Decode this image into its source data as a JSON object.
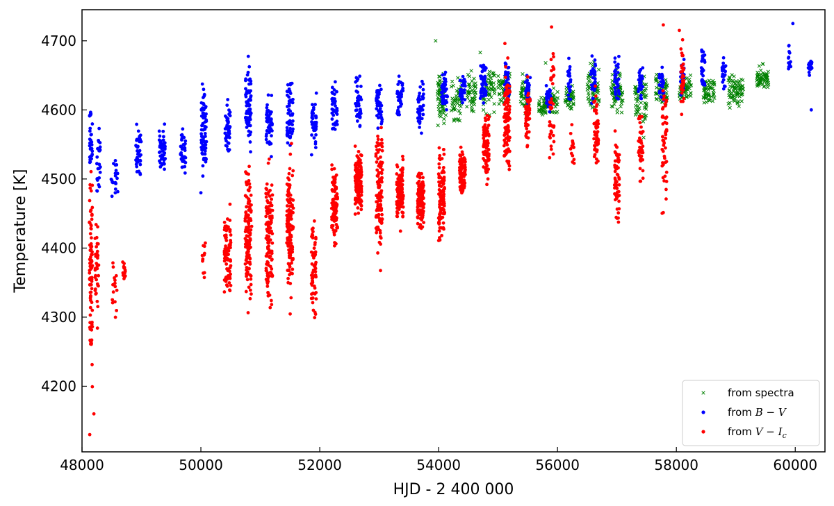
{
  "chart_data": {
    "type": "scatter",
    "title": "",
    "xlabel": "HJD - 2 400 000",
    "ylabel": "Temperature [K]",
    "xlim": [
      48000,
      60500
    ],
    "ylim": [
      4105,
      4745
    ],
    "grid": false,
    "legend_position": "lower-right",
    "x_ticks": [
      48000,
      50000,
      52000,
      54000,
      56000,
      58000,
      60000
    ],
    "y_ticks": [
      4200,
      4300,
      4400,
      4500,
      4600,
      4700
    ],
    "x_tick_labels": [
      "48000",
      "50000",
      "52000",
      "54000",
      "56000",
      "58000",
      "60000"
    ],
    "y_tick_labels": [
      "4200",
      "4300",
      "4400",
      "4500",
      "4600",
      "4700"
    ],
    "series": [
      {
        "name": "from spectra",
        "legend_parts": [
          "from spectra",
          "",
          ""
        ],
        "marker": "x",
        "color": "#008000",
        "clusters": [
          {
            "x": 54050,
            "xw": 150,
            "ymin": 4565,
            "ymax": 4665,
            "n": 70
          },
          {
            "x": 54300,
            "xw": 180,
            "ymin": 4570,
            "ymax": 4660,
            "n": 50
          },
          {
            "x": 54550,
            "xw": 150,
            "ymin": 4580,
            "ymax": 4665,
            "n": 45
          },
          {
            "x": 54850,
            "xw": 200,
            "ymin": 4585,
            "ymax": 4680,
            "n": 55
          },
          {
            "x": 55100,
            "xw": 200,
            "ymin": 4595,
            "ymax": 4665,
            "n": 50
          },
          {
            "x": 55450,
            "xw": 150,
            "ymin": 4590,
            "ymax": 4660,
            "n": 50
          },
          {
            "x": 55750,
            "xw": 150,
            "ymin": 4585,
            "ymax": 4625,
            "n": 45
          },
          {
            "x": 55950,
            "xw": 120,
            "ymin": 4590,
            "ymax": 4640,
            "n": 30
          },
          {
            "x": 56200,
            "xw": 150,
            "ymin": 4595,
            "ymax": 4640,
            "n": 45
          },
          {
            "x": 56600,
            "xw": 200,
            "ymin": 4580,
            "ymax": 4680,
            "n": 60
          },
          {
            "x": 57000,
            "xw": 200,
            "ymin": 4585,
            "ymax": 4665,
            "n": 65
          },
          {
            "x": 57400,
            "xw": 200,
            "ymin": 4565,
            "ymax": 4660,
            "n": 60
          },
          {
            "x": 57750,
            "xw": 200,
            "ymin": 4590,
            "ymax": 4660,
            "n": 60
          },
          {
            "x": 58150,
            "xw": 200,
            "ymin": 4600,
            "ymax": 4660,
            "n": 60
          },
          {
            "x": 58550,
            "xw": 200,
            "ymin": 4600,
            "ymax": 4655,
            "n": 55
          },
          {
            "x": 59000,
            "xw": 250,
            "ymin": 4595,
            "ymax": 4660,
            "n": 70
          },
          {
            "x": 59450,
            "xw": 200,
            "ymin": 4620,
            "ymax": 4670,
            "n": 60
          }
        ],
        "points": [
          [
            53950,
            4700
          ],
          [
            54700,
            4683
          ],
          [
            55800,
            4668
          ],
          [
            58900,
            4603
          ],
          [
            57450,
            4560
          ]
        ]
      },
      {
        "name": "from B - V",
        "legend_parts": [
          "from ",
          "B",
          " − V"
        ],
        "marker": "o",
        "color": "#0000ff",
        "clusters": [
          {
            "x": 48150,
            "xw": 50,
            "ymin": 4490,
            "ymax": 4630,
            "n": 30
          },
          {
            "x": 48280,
            "xw": 60,
            "ymin": 4460,
            "ymax": 4590,
            "n": 25
          },
          {
            "x": 48550,
            "xw": 120,
            "ymin": 4465,
            "ymax": 4535,
            "n": 20
          },
          {
            "x": 48950,
            "xw": 90,
            "ymin": 4485,
            "ymax": 4595,
            "n": 40
          },
          {
            "x": 49350,
            "xw": 100,
            "ymin": 4495,
            "ymax": 4600,
            "n": 45
          },
          {
            "x": 49700,
            "xw": 90,
            "ymin": 4495,
            "ymax": 4590,
            "n": 40
          },
          {
            "x": 50050,
            "xw": 90,
            "ymin": 4470,
            "ymax": 4665,
            "n": 75
          },
          {
            "x": 50450,
            "xw": 90,
            "ymin": 4515,
            "ymax": 4630,
            "n": 45
          },
          {
            "x": 50800,
            "xw": 100,
            "ymin": 4520,
            "ymax": 4695,
            "n": 65
          },
          {
            "x": 51150,
            "xw": 100,
            "ymin": 4525,
            "ymax": 4635,
            "n": 50
          },
          {
            "x": 51500,
            "xw": 100,
            "ymin": 4520,
            "ymax": 4675,
            "n": 55
          },
          {
            "x": 51900,
            "xw": 90,
            "ymin": 4520,
            "ymax": 4635,
            "n": 45
          },
          {
            "x": 52250,
            "xw": 90,
            "ymin": 4560,
            "ymax": 4650,
            "n": 40
          },
          {
            "x": 52650,
            "xw": 100,
            "ymin": 4555,
            "ymax": 4660,
            "n": 45
          },
          {
            "x": 53000,
            "xw": 100,
            "ymin": 4560,
            "ymax": 4655,
            "n": 45
          },
          {
            "x": 53350,
            "xw": 100,
            "ymin": 4575,
            "ymax": 4660,
            "n": 40
          },
          {
            "x": 53700,
            "xw": 100,
            "ymin": 4560,
            "ymax": 4660,
            "n": 40
          },
          {
            "x": 54100,
            "xw": 100,
            "ymin": 4590,
            "ymax": 4665,
            "n": 40
          },
          {
            "x": 54400,
            "xw": 100,
            "ymin": 4600,
            "ymax": 4665,
            "n": 35
          },
          {
            "x": 54750,
            "xw": 100,
            "ymin": 4600,
            "ymax": 4685,
            "n": 45
          },
          {
            "x": 55150,
            "xw": 80,
            "ymin": 4600,
            "ymax": 4680,
            "n": 40
          },
          {
            "x": 55500,
            "xw": 80,
            "ymin": 4590,
            "ymax": 4660,
            "n": 35
          },
          {
            "x": 55850,
            "xw": 80,
            "ymin": 4590,
            "ymax": 4640,
            "n": 30
          },
          {
            "x": 56200,
            "xw": 60,
            "ymin": 4600,
            "ymax": 4680,
            "n": 25
          },
          {
            "x": 56600,
            "xw": 80,
            "ymin": 4600,
            "ymax": 4690,
            "n": 35
          },
          {
            "x": 57000,
            "xw": 80,
            "ymin": 4600,
            "ymax": 4685,
            "n": 35
          },
          {
            "x": 57400,
            "xw": 80,
            "ymin": 4590,
            "ymax": 4680,
            "n": 30
          },
          {
            "x": 57750,
            "xw": 80,
            "ymin": 4590,
            "ymax": 4685,
            "n": 30
          },
          {
            "x": 58100,
            "xw": 60,
            "ymin": 4615,
            "ymax": 4680,
            "n": 25
          },
          {
            "x": 58450,
            "xw": 60,
            "ymin": 4620,
            "ymax": 4700,
            "n": 30
          },
          {
            "x": 58800,
            "xw": 60,
            "ymin": 4620,
            "ymax": 4690,
            "n": 25
          },
          {
            "x": 59900,
            "xw": 50,
            "ymin": 4650,
            "ymax": 4700,
            "n": 12
          },
          {
            "x": 60250,
            "xw": 60,
            "ymin": 4645,
            "ymax": 4680,
            "n": 18
          }
        ],
        "points": [
          [
            59960,
            4725
          ],
          [
            60270,
            4600
          ],
          [
            50000,
            4480
          ]
        ]
      },
      {
        "name": "from V - Ic",
        "legend_parts": [
          "from ",
          "V",
          " − I_c"
        ],
        "marker": "o",
        "color": "#ff0000",
        "clusters": [
          {
            "x": 48150,
            "xw": 50,
            "ymin": 4130,
            "ymax": 4600,
            "n": 90
          },
          {
            "x": 48250,
            "xw": 60,
            "ymin": 4270,
            "ymax": 4470,
            "n": 35
          },
          {
            "x": 48550,
            "xw": 80,
            "ymin": 4285,
            "ymax": 4420,
            "n": 15
          },
          {
            "x": 48700,
            "xw": 60,
            "ymin": 4330,
            "ymax": 4400,
            "n": 15
          },
          {
            "x": 50050,
            "xw": 60,
            "ymin": 4320,
            "ymax": 4440,
            "n": 12
          },
          {
            "x": 50450,
            "xw": 110,
            "ymin": 4305,
            "ymax": 4480,
            "n": 80
          },
          {
            "x": 50800,
            "xw": 110,
            "ymin": 4280,
            "ymax": 4560,
            "n": 130
          },
          {
            "x": 51150,
            "xw": 110,
            "ymin": 4275,
            "ymax": 4550,
            "n": 130
          },
          {
            "x": 51500,
            "xw": 110,
            "ymin": 4285,
            "ymax": 4570,
            "n": 130
          },
          {
            "x": 51900,
            "xw": 80,
            "ymin": 4275,
            "ymax": 4470,
            "n": 60
          },
          {
            "x": 52250,
            "xw": 100,
            "ymin": 4390,
            "ymax": 4530,
            "n": 100
          },
          {
            "x": 52650,
            "xw": 110,
            "ymin": 4440,
            "ymax": 4555,
            "n": 130
          },
          {
            "x": 53000,
            "xw": 110,
            "ymin": 4360,
            "ymax": 4605,
            "n": 120
          },
          {
            "x": 53350,
            "xw": 110,
            "ymin": 4420,
            "ymax": 4540,
            "n": 110
          },
          {
            "x": 53700,
            "xw": 110,
            "ymin": 4410,
            "ymax": 4525,
            "n": 110
          },
          {
            "x": 54050,
            "xw": 100,
            "ymin": 4385,
            "ymax": 4560,
            "n": 110
          },
          {
            "x": 54400,
            "xw": 100,
            "ymin": 4460,
            "ymax": 4560,
            "n": 90
          },
          {
            "x": 54800,
            "xw": 100,
            "ymin": 4480,
            "ymax": 4620,
            "n": 100
          },
          {
            "x": 55150,
            "xw": 100,
            "ymin": 4475,
            "ymax": 4700,
            "n": 110
          },
          {
            "x": 55500,
            "xw": 80,
            "ymin": 4530,
            "ymax": 4650,
            "n": 50
          },
          {
            "x": 55900,
            "xw": 80,
            "ymin": 4500,
            "ymax": 4720,
            "n": 40
          },
          {
            "x": 56250,
            "xw": 60,
            "ymin": 4505,
            "ymax": 4590,
            "n": 15
          },
          {
            "x": 56650,
            "xw": 80,
            "ymin": 4490,
            "ymax": 4660,
            "n": 50
          },
          {
            "x": 57000,
            "xw": 80,
            "ymin": 4405,
            "ymax": 4600,
            "n": 60
          },
          {
            "x": 57400,
            "xw": 80,
            "ymin": 4480,
            "ymax": 4620,
            "n": 40
          },
          {
            "x": 57800,
            "xw": 80,
            "ymin": 4410,
            "ymax": 4720,
            "n": 50
          },
          {
            "x": 58100,
            "xw": 60,
            "ymin": 4565,
            "ymax": 4715,
            "n": 30
          }
        ],
        "points": [
          [
            48130,
            4130
          ],
          [
            55900,
            4720
          ],
          [
            57780,
            4723
          ],
          [
            58050,
            4715
          ],
          [
            48200,
            4160
          ]
        ]
      }
    ]
  }
}
